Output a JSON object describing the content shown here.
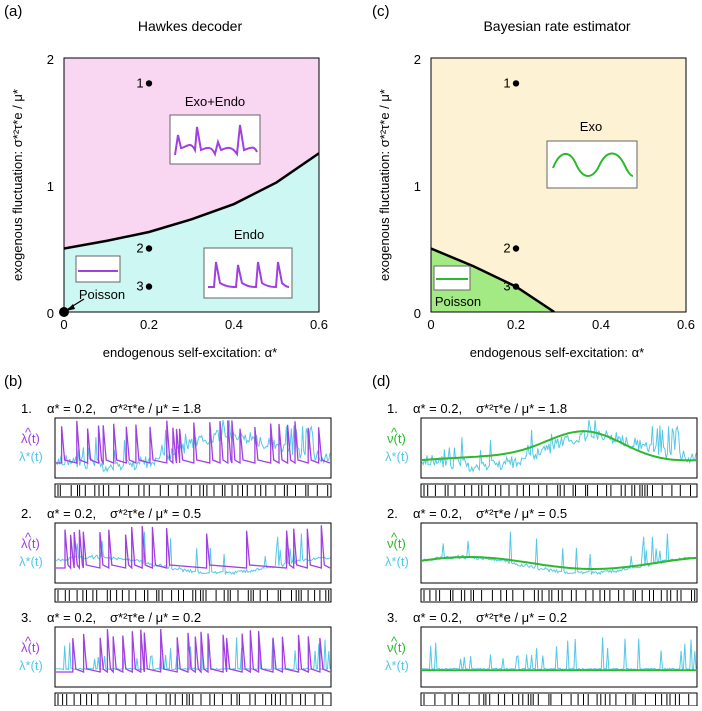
{
  "panels": {
    "a": {
      "label": "(a)",
      "title": "Hawkes decoder"
    },
    "b": {
      "label": "(b)"
    },
    "c": {
      "label": "(c)",
      "title": "Bayesian rate estimator"
    },
    "d": {
      "label": "(d)"
    }
  },
  "axes": {
    "xlabel": "endogenous self-excitation: α*",
    "ylabel": "exogenous fluctuation: σ*²τ*e / μ*",
    "xticks": [
      "0",
      "0.2",
      "0.4",
      "0.6"
    ],
    "yticks": [
      "0",
      "1",
      "2"
    ]
  },
  "regions_a": {
    "top": "Exo+Endo",
    "bottom": "Endo",
    "origin": "Poisson"
  },
  "regions_c": {
    "main": "Exo",
    "corner": "Poisson"
  },
  "points": [
    {
      "label": "1",
      "alpha": 0.2,
      "sigma": 1.8
    },
    {
      "label": "2",
      "alpha": 0.2,
      "sigma": 0.5
    },
    {
      "label": "3",
      "alpha": 0.2,
      "sigma": 0.2
    }
  ],
  "rows": [
    {
      "num": "1.",
      "alpha_text": "α* = 0.2,",
      "sigma_text": "σ*²τ*e / μ* = 1.8"
    },
    {
      "num": "2.",
      "alpha_text": "α* = 0.2,",
      "sigma_text": "σ*²τ*e / μ* = 0.5"
    },
    {
      "num": "3.",
      "alpha_text": "α* = 0.2,",
      "sigma_text": "σ*²τ*e / μ* = 0.2"
    }
  ],
  "legend_b": {
    "est": "λ(t)",
    "hat": "^",
    "true": "λ*(t)"
  },
  "legend_d": {
    "est": "ν(t)",
    "hat": "^",
    "true": "λ*(t)"
  },
  "colors": {
    "pink": "#f9d6f1",
    "cyan": "#cdf7f3",
    "cream": "#fdf2d3",
    "green_fill": "#a4ea84",
    "purple": "#a040e0",
    "lightblue": "#55c8e8",
    "green": "#2eb82e",
    "black": "#000000"
  },
  "chart_data": [
    {
      "type": "scatter",
      "title": "Hawkes decoder",
      "xlabel": "endogenous self-excitation: α*",
      "ylabel": "exogenous fluctuation: σ*²τ*e / μ*",
      "xlim": [
        0,
        0.6
      ],
      "ylim": [
        0,
        2
      ],
      "boundary": {
        "x": [
          0,
          0.1,
          0.2,
          0.3,
          0.4,
          0.5,
          0.6
        ],
        "y": [
          0.5,
          0.56,
          0.63,
          0.73,
          0.85,
          1.02,
          1.25
        ]
      },
      "series": [
        {
          "name": "",
          "x": [
            0.2,
            0.2,
            0.2
          ],
          "y": [
            1.8,
            0.5,
            0.2
          ]
        }
      ]
    },
    {
      "type": "scatter",
      "title": "Bayesian rate estimator",
      "xlabel": "endogenous self-excitation: α*",
      "ylabel": "exogenous fluctuation: σ*²τ*e / μ*",
      "xlim": [
        0,
        0.6
      ],
      "ylim": [
        0,
        2
      ],
      "boundary": {
        "x": [
          0,
          0.1,
          0.2,
          0.29
        ],
        "y": [
          0.5,
          0.36,
          0.2,
          0
        ]
      },
      "series": [
        {
          "name": "",
          "x": [
            0.2,
            0.2,
            0.2
          ],
          "y": [
            1.8,
            0.5,
            0.2
          ]
        }
      ]
    }
  ]
}
